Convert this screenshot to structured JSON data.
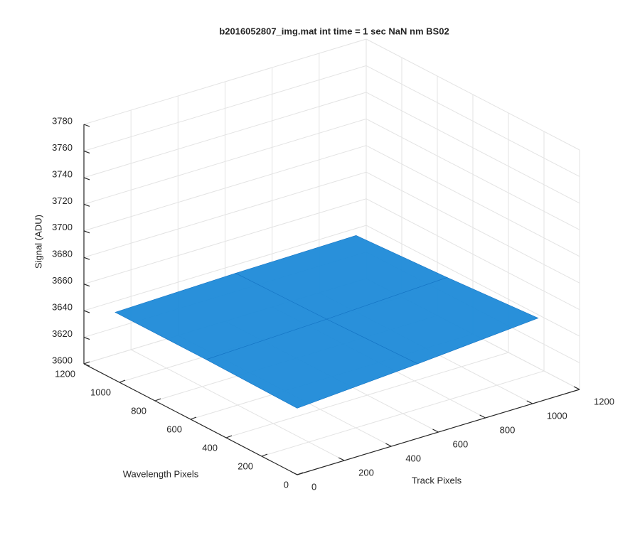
{
  "chart_data": {
    "type": "surface",
    "title": "b2016052807_img.mat int time = 1 sec  NaN nm BS02",
    "xlabel": "Track Pixels",
    "ylabel": "Wavelength Pixels",
    "zlabel": "Signal (ADU)",
    "x": [
      0,
      512,
      1024
    ],
    "y": [
      0,
      512,
      1024
    ],
    "z": [
      [
        3650,
        3656,
        3663
      ],
      [
        3651,
        3654,
        3658
      ],
      [
        3651,
        3653,
        3654
      ]
    ],
    "color": "#1e8ad8",
    "xlim": [
      0,
      1200
    ],
    "ylim": [
      0,
      1200
    ],
    "zlim": [
      3600,
      3780
    ],
    "xticks": [
      0,
      200,
      400,
      600,
      800,
      1000,
      1200
    ],
    "yticks": [
      0,
      200,
      400,
      600,
      800,
      1000,
      1200
    ],
    "zticks": [
      3600,
      3620,
      3640,
      3660,
      3680,
      3700,
      3720,
      3740,
      3760,
      3780
    ],
    "grid": true
  }
}
